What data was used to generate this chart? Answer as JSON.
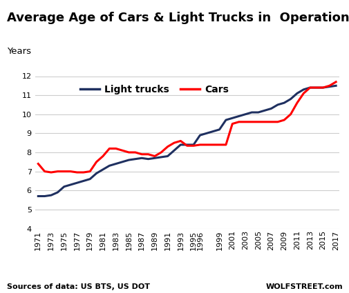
{
  "title": "Average Age of Cars & Light Trucks in  Operation",
  "ylabel": "Years",
  "source_left": "Sources of data: US BTS, US DOT",
  "source_right": "WOLFSTREET.com",
  "light_trucks": {
    "years": [
      1971,
      1972,
      1973,
      1974,
      1975,
      1976,
      1977,
      1978,
      1979,
      1980,
      1981,
      1982,
      1983,
      1984,
      1985,
      1986,
      1987,
      1988,
      1989,
      1990,
      1991,
      1992,
      1993,
      1994,
      1995,
      1996,
      1997,
      1998,
      1999,
      2000,
      2001,
      2002,
      2003,
      2004,
      2005,
      2006,
      2007,
      2008,
      2009,
      2010,
      2011,
      2012,
      2013,
      2014,
      2015,
      2016,
      2017
    ],
    "values": [
      5.7,
      5.7,
      5.75,
      5.9,
      6.2,
      6.3,
      6.4,
      6.5,
      6.6,
      6.9,
      7.1,
      7.3,
      7.4,
      7.5,
      7.6,
      7.65,
      7.7,
      7.65,
      7.7,
      7.75,
      7.8,
      8.1,
      8.4,
      8.4,
      8.4,
      8.9,
      9.0,
      9.1,
      9.2,
      9.7,
      9.8,
      9.9,
      10.0,
      10.1,
      10.1,
      10.2,
      10.3,
      10.5,
      10.6,
      10.8,
      11.1,
      11.3,
      11.4,
      11.4,
      11.4,
      11.45,
      11.5
    ],
    "color": "#1F3060",
    "linewidth": 2.2,
    "label": "Light trucks"
  },
  "cars": {
    "years": [
      1971,
      1972,
      1973,
      1974,
      1975,
      1976,
      1977,
      1978,
      1979,
      1980,
      1981,
      1982,
      1983,
      1984,
      1985,
      1986,
      1987,
      1988,
      1989,
      1990,
      1991,
      1992,
      1993,
      1994,
      1995,
      1996,
      1997,
      1998,
      1999,
      2000,
      2001,
      2002,
      2003,
      2004,
      2005,
      2006,
      2007,
      2008,
      2009,
      2010,
      2011,
      2012,
      2013,
      2014,
      2015,
      2016,
      2017
    ],
    "values": [
      7.4,
      7.0,
      6.95,
      7.0,
      7.0,
      7.0,
      6.95,
      6.95,
      7.0,
      7.5,
      7.8,
      8.2,
      8.2,
      8.1,
      8.0,
      8.0,
      7.9,
      7.9,
      7.8,
      8.0,
      8.3,
      8.5,
      8.6,
      8.35,
      8.35,
      8.4,
      8.4,
      8.4,
      8.4,
      8.4,
      9.5,
      9.6,
      9.6,
      9.6,
      9.6,
      9.6,
      9.6,
      9.6,
      9.7,
      10.0,
      10.6,
      11.1,
      11.4,
      11.4,
      11.4,
      11.5,
      11.7
    ],
    "color": "#FF0000",
    "linewidth": 2.2,
    "label": "Cars"
  },
  "ylim": [
    4,
    12
  ],
  "yticks": [
    4,
    5,
    6,
    7,
    8,
    9,
    10,
    11,
    12
  ],
  "xtick_years": [
    1971,
    1973,
    1975,
    1977,
    1979,
    1981,
    1983,
    1985,
    1987,
    1989,
    1991,
    1993,
    1995,
    1996,
    1999,
    2001,
    2003,
    2005,
    2007,
    2009,
    2011,
    2013,
    2015,
    2017
  ],
  "xlim": [
    1970.5,
    2017.5
  ],
  "background_color": "#FFFFFF",
  "grid_color": "#CCCCCC",
  "title_fontsize": 13,
  "ylabel_fontsize": 9.5,
  "tick_fontsize": 8,
  "source_fontsize": 8,
  "legend_fontsize": 10
}
